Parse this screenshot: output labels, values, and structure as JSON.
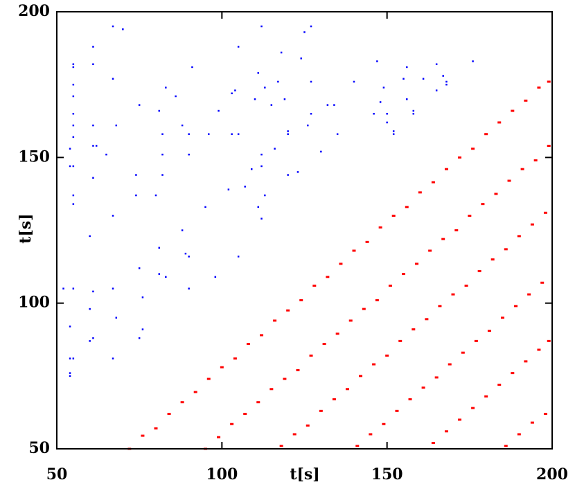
{
  "chart_data": {
    "type": "scatter",
    "x_label": "t[s]",
    "y_label": "t[s]",
    "xlim": [
      50,
      200
    ],
    "ylim": [
      50,
      200
    ],
    "xticks": [
      50,
      100,
      150,
      200
    ],
    "yticks": [
      50,
      100,
      150,
      200
    ],
    "series": [
      {
        "color": "#ff0000",
        "x": [
          72,
          76,
          80,
          84,
          88,
          92,
          96,
          100,
          104,
          108,
          112,
          116,
          120,
          124,
          128,
          132,
          136,
          140,
          144,
          148,
          152,
          156,
          160,
          164,
          168,
          172,
          176,
          180,
          184,
          188,
          192,
          196,
          199,
          95,
          99,
          103,
          107,
          111,
          115,
          119,
          123,
          127,
          131,
          135,
          139,
          143,
          147,
          151,
          155,
          159,
          163,
          167,
          171,
          175,
          179,
          183,
          187,
          191,
          195,
          199,
          118,
          122,
          126,
          130,
          134,
          138,
          142,
          146,
          150,
          154,
          158,
          162,
          166,
          170,
          174,
          178,
          182,
          186,
          190,
          194,
          198,
          141,
          145,
          149,
          153,
          157,
          161,
          165,
          169,
          173,
          177,
          181,
          185,
          189,
          193,
          197,
          164,
          168,
          172,
          176,
          180,
          184,
          188,
          192,
          196,
          199,
          186,
          190,
          194,
          198
        ],
        "y": [
          50,
          54.5,
          57,
          62,
          66,
          69.5,
          74,
          78,
          81,
          86,
          89,
          94,
          97.5,
          101,
          106,
          109,
          113.5,
          118,
          121,
          126,
          130,
          133,
          138,
          141.5,
          146,
          150,
          153,
          158,
          162,
          166,
          169.5,
          174,
          176,
          50,
          54,
          58.5,
          62,
          66,
          70.5,
          74,
          77,
          82,
          86,
          89.5,
          94,
          98,
          101,
          106,
          110,
          113.5,
          118,
          122,
          125,
          130,
          134,
          137.5,
          142,
          146,
          149,
          154,
          51,
          55,
          58,
          63,
          67,
          70.5,
          75,
          79,
          82,
          87,
          91,
          94.5,
          99,
          103,
          106,
          111,
          115,
          118.5,
          123,
          127,
          131,
          51,
          55,
          58.5,
          63,
          67,
          71,
          74.5,
          79,
          83,
          87,
          90.5,
          95,
          99,
          103,
          107,
          52,
          56,
          60,
          64,
          68,
          72,
          76,
          80,
          84,
          87,
          51,
          55,
          59,
          62
        ]
      },
      {
        "color": "#0000ff",
        "x": [
          54,
          54,
          55,
          55,
          55,
          55,
          55,
          55,
          55,
          55,
          55,
          55,
          52,
          55,
          54,
          54,
          55,
          54,
          54,
          60,
          60,
          61,
          60,
          61,
          61,
          61,
          61,
          61,
          62,
          61,
          65,
          67,
          67,
          68,
          67,
          67,
          68,
          67,
          70,
          75,
          74,
          74,
          75,
          76,
          76,
          75,
          80,
          81,
          82,
          82,
          82,
          81,
          81,
          83,
          83,
          86,
          88,
          88,
          89,
          90,
          90,
          90,
          90,
          91,
          95,
          96,
          98,
          99,
          102,
          103,
          103,
          104,
          105,
          105,
          105,
          107,
          109,
          110,
          111,
          111,
          112,
          112,
          112,
          112,
          113,
          113,
          115,
          116,
          117,
          118,
          119,
          120,
          120,
          120,
          123,
          124,
          125,
          126,
          127,
          127,
          127,
          130,
          132,
          134,
          135,
          140,
          146,
          147,
          148,
          149,
          150,
          150,
          152,
          152,
          155,
          156,
          156,
          158,
          158,
          161,
          165,
          165,
          167,
          168,
          168,
          176
        ],
        "y": [
          153,
          147,
          147,
          182,
          181,
          175,
          171,
          165,
          161,
          157,
          137,
          134,
          105,
          105,
          92,
          81,
          81,
          76,
          75,
          123,
          98,
          104,
          87,
          88,
          188,
          182,
          161,
          154,
          154,
          143,
          151,
          195,
          177,
          161,
          130,
          105,
          95,
          81,
          194,
          168,
          144,
          137,
          112,
          102,
          91,
          88,
          137,
          166,
          158,
          151,
          144,
          119,
          110,
          109,
          174,
          171,
          161,
          125,
          117,
          158,
          151,
          116,
          105,
          181,
          133,
          158,
          109,
          166,
          139,
          158,
          172,
          173,
          188,
          116,
          158,
          140,
          146,
          170,
          179,
          133,
          195,
          151,
          147,
          129,
          137,
          174,
          168,
          153,
          176,
          186,
          170,
          159,
          158,
          144,
          145,
          184,
          193,
          161,
          165,
          176,
          195,
          152,
          168,
          168,
          158,
          176,
          165,
          183,
          169,
          174,
          165,
          162,
          159,
          158,
          177,
          181,
          170,
          166,
          165,
          177,
          182,
          173,
          178,
          176,
          175,
          183
        ]
      }
    ]
  }
}
